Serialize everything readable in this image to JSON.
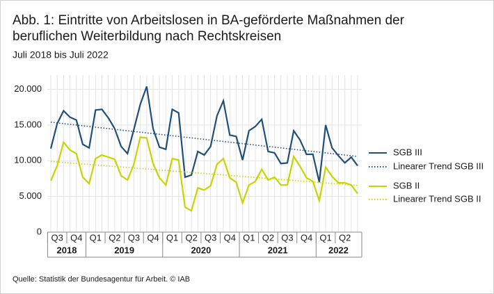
{
  "chart_data": {
    "type": "line",
    "title": [
      "Abb. 1: Eintritte von Arbeitslosen in BA-geförderte Maßnahmen der",
      "beruflichen Weiterbildung nach Rechtskreisen"
    ],
    "subtitle": "Juli 2018 bis Juli 2022",
    "source": "Quelle: Statistik der Bundesagentur für Arbeit. © IAB",
    "categories": [
      null,
      null,
      null,
      null,
      null,
      null,
      null,
      null,
      null,
      null,
      null,
      null,
      null,
      null,
      null,
      null,
      null,
      null,
      null,
      null,
      null,
      null,
      null,
      null,
      null,
      null,
      null,
      null,
      null,
      null,
      null,
      null,
      null,
      null,
      null,
      null,
      null,
      null,
      null,
      null,
      null,
      null,
      null,
      null,
      null,
      null,
      null,
      null,
      null
    ],
    "quarter_labels": [
      "Q3",
      "Q4",
      "Q1",
      "Q2",
      "Q3",
      "Q4",
      "Q1",
      "Q2",
      "Q3",
      "Q4",
      "Q1",
      "Q2",
      "Q3",
      "Q4",
      "Q1",
      "Q2"
    ],
    "years": [
      "2018",
      "2019",
      "2020",
      "2021",
      "2022"
    ],
    "ylim": [
      0,
      22000
    ],
    "yticks": [
      0,
      {
        "value": 5000,
        "label": "5.000"
      },
      {
        "value": 10000,
        "label": "10.000"
      },
      {
        "value": 15000,
        "label": "15.000"
      },
      {
        "value": 20000,
        "label": "20.000"
      }
    ],
    "grid": true,
    "legend": "right",
    "series": [
      {
        "name": "SGB III",
        "color": "#1f4e79",
        "style": "solid",
        "values": [
          11700,
          15200,
          17000,
          16100,
          15700,
          12300,
          11800,
          17100,
          17200,
          16000,
          14500,
          12000,
          11000,
          14400,
          17900,
          20400,
          14500,
          11900,
          11600,
          17200,
          16700,
          7700,
          8000,
          11300,
          10800,
          12000,
          16300,
          18400,
          13600,
          13400,
          10100,
          14200,
          14800,
          15800,
          11300,
          11100,
          9600,
          9700,
          14200,
          12900,
          10900,
          10900,
          7000,
          15000,
          11800,
          10700,
          9700,
          10500,
          9300
        ]
      },
      {
        "name": "Linearer Trend SGB III",
        "color": "#1f4e79",
        "style": "dotted",
        "values": [
          15400,
          15300,
          15200,
          15100,
          15000,
          14900,
          14800,
          14700,
          14600,
          14500,
          14400,
          14300,
          14200,
          14100,
          14000,
          13900,
          13800,
          13700,
          13600,
          13500,
          13400,
          13300,
          13200,
          13100,
          13000,
          12900,
          12800,
          12700,
          12600,
          12500,
          12400,
          12300,
          12200,
          12100,
          12000,
          11900,
          11800,
          11700,
          11600,
          11500,
          11400,
          11300,
          11200,
          11100,
          11000,
          10900,
          10800,
          10700,
          10600
        ]
      },
      {
        "name": "SGB II",
        "color": "#c8d400",
        "style": "solid",
        "values": [
          7200,
          9300,
          12600,
          11500,
          11000,
          7700,
          6800,
          10300,
          10800,
          10500,
          10200,
          7900,
          7300,
          9500,
          13300,
          13200,
          9600,
          7600,
          6600,
          10300,
          10100,
          3500,
          3000,
          6200,
          5900,
          6500,
          9500,
          10300,
          7600,
          7000,
          4100,
          6600,
          7100,
          8800,
          7300,
          7700,
          6600,
          6600,
          10600,
          9200,
          7600,
          7100,
          4400,
          9100,
          7800,
          6900,
          6900,
          6600,
          5400
        ]
      },
      {
        "name": "Linearer Trend SGB II",
        "color": "#c8d400",
        "style": "dotted",
        "values": [
          9900,
          9830,
          9760,
          9690,
          9620,
          9550,
          9480,
          9410,
          9340,
          9270,
          9200,
          9130,
          9060,
          8990,
          8920,
          8850,
          8780,
          8710,
          8640,
          8570,
          8500,
          8430,
          8360,
          8290,
          8220,
          8150,
          8080,
          8010,
          7940,
          7870,
          7800,
          7730,
          7660,
          7590,
          7520,
          7450,
          7380,
          7310,
          7240,
          7170,
          7100,
          7030,
          6960,
          6890,
          6820,
          6750,
          6680,
          6610,
          6540
        ]
      }
    ]
  }
}
